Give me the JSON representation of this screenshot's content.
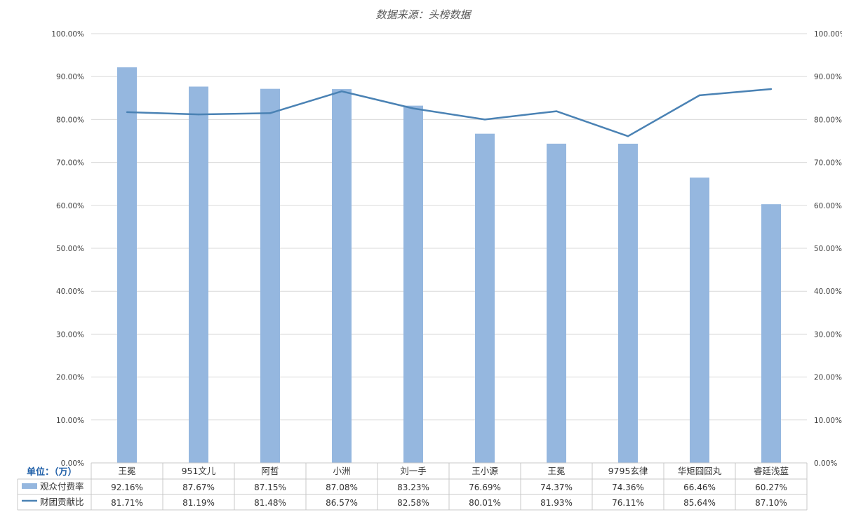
{
  "chart_data": {
    "type": "bar",
    "title": "数据来源：头榜数据",
    "unit_label": "单位：（万）",
    "categories": [
      "王冕",
      "951文儿",
      "阿哲",
      "小洲",
      "刘一手",
      "王小源",
      "王冕",
      "9795玄律",
      "华矩囧囧丸",
      "睿廷浅蓝"
    ],
    "series": [
      {
        "name": "观众付费率",
        "kind": "bar",
        "axis": "left",
        "color": "#95b7df",
        "values": [
          92.16,
          87.67,
          87.15,
          87.08,
          83.23,
          76.69,
          74.37,
          74.36,
          66.46,
          60.27
        ],
        "labels": [
          "92.16%",
          "87.67%",
          "87.15%",
          "87.08%",
          "83.23%",
          "76.69%",
          "74.37%",
          "74.36%",
          "66.46%",
          "60.27%"
        ]
      },
      {
        "name": "财团贡献比",
        "kind": "line",
        "axis": "right",
        "color": "#4a82b4",
        "values": [
          81.71,
          81.19,
          81.48,
          86.57,
          82.58,
          80.01,
          81.93,
          76.11,
          85.64,
          87.1
        ],
        "labels": [
          "81.71%",
          "81.19%",
          "81.48%",
          "86.57%",
          "82.58%",
          "80.01%",
          "81.93%",
          "76.11%",
          "85.64%",
          "87.10%"
        ]
      }
    ],
    "ylim": [
      0,
      100
    ],
    "y_ticks": [
      "0.00%",
      "10.00%",
      "20.00%",
      "30.00%",
      "40.00%",
      "50.00%",
      "60.00%",
      "70.00%",
      "80.00%",
      "90.00%",
      "100.00%"
    ],
    "y2lim": [
      0,
      100
    ],
    "y2_ticks": [
      "0.00%",
      "10.00%",
      "20.00%",
      "30.00%",
      "40.00%",
      "50.00%",
      "60.00%",
      "70.00%",
      "80.00%",
      "90.00%",
      "100.00%"
    ],
    "grid": true,
    "legend": "data-table"
  }
}
